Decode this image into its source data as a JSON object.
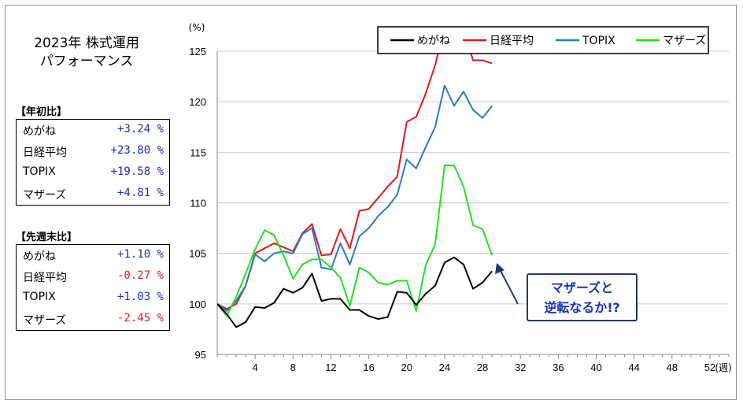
{
  "title": {
    "line1": "2023年 株式運用",
    "line2": "パフォーマンス"
  },
  "ytd": {
    "label": "【年初比】",
    "rows": [
      {
        "name": "めがね",
        "value": "+3.24 %",
        "sign": "pos"
      },
      {
        "name": "日経平均",
        "value": "+23.80 %",
        "sign": "pos"
      },
      {
        "name": "TOPIX",
        "value": "+19.58 %",
        "sign": "pos"
      },
      {
        "name": "マザーズ",
        "value": "+4.81 %",
        "sign": "pos"
      }
    ]
  },
  "wow": {
    "label": "【先週末比】",
    "rows": [
      {
        "name": "めがね",
        "value": "+1.10 %",
        "sign": "pos"
      },
      {
        "name": "日経平均",
        "value": "-0.27 %",
        "sign": "neg"
      },
      {
        "name": "TOPIX",
        "value": "+1.03 %",
        "sign": "pos"
      },
      {
        "name": "マザーズ",
        "value": "-2.45 %",
        "sign": "neg"
      }
    ]
  },
  "callout": {
    "line1": "マザーズと",
    "line2": "逆転なるか!?"
  },
  "colors": {
    "megane": "#000000",
    "nikkei": "#e01818",
    "topix": "#2a78c8",
    "mothers": "#22e022",
    "callout_text": "#1630c0",
    "callout_border": "#213a6b",
    "arrow": "#213a6b"
  },
  "chart_data": {
    "type": "line",
    "ylabel": "(%)",
    "xlabel": "(週)",
    "ylim": [
      95,
      125
    ],
    "xlim": [
      0,
      54
    ],
    "yticks": [
      95,
      100,
      105,
      110,
      115,
      120,
      125
    ],
    "xticks": [
      4,
      8,
      12,
      16,
      20,
      24,
      28,
      32,
      36,
      40,
      44,
      48,
      52
    ],
    "grid": true,
    "legend": "top-right",
    "x": [
      0,
      1,
      2,
      3,
      4,
      5,
      6,
      7,
      8,
      9,
      10,
      11,
      12,
      13,
      14,
      15,
      16,
      17,
      18,
      19,
      20,
      21,
      22,
      23,
      24,
      25,
      26,
      27,
      28,
      29
    ],
    "series": [
      {
        "name": "めがね",
        "color": "#000000",
        "values": [
          100,
          99,
          97.7,
          98.2,
          99.7,
          99.6,
          100.1,
          101.5,
          101.1,
          101.6,
          103.0,
          100.3,
          100.5,
          100.5,
          99.4,
          99.4,
          98.8,
          98.5,
          98.7,
          101.2,
          101.1,
          99.9,
          101.0,
          101.8,
          104.1,
          104.6,
          103.9,
          101.5,
          102.1,
          103.24
        ]
      },
      {
        "name": "日経平均",
        "color": "#e01818",
        "values": [
          100,
          99.5,
          100.0,
          101.8,
          105.0,
          105.5,
          106.0,
          105.6,
          105.2,
          107.0,
          107.9,
          104.8,
          104.9,
          107.4,
          105.5,
          109.2,
          109.4,
          110.5,
          111.6,
          112.6,
          118.0,
          118.5,
          120.8,
          123.6,
          127.5,
          126.6,
          127.2,
          124.1,
          124.1,
          123.8
        ]
      },
      {
        "name": "TOPIX",
        "color": "#2a78c8",
        "values": [
          100,
          99.3,
          100.3,
          101.8,
          104.9,
          104.2,
          105.0,
          105.2,
          105.0,
          106.9,
          107.5,
          103.6,
          103.4,
          106.0,
          103.9,
          106.7,
          107.5,
          108.7,
          109.6,
          110.8,
          114.3,
          113.4,
          115.5,
          117.5,
          121.6,
          119.6,
          121.0,
          119.2,
          118.4,
          119.58
        ]
      },
      {
        "name": "マザーズ",
        "color": "#22e022",
        "values": [
          100,
          98.8,
          100.7,
          103.0,
          105.4,
          107.3,
          106.8,
          104.8,
          102.5,
          103.9,
          104.4,
          104.4,
          103.6,
          102.6,
          99.8,
          103.6,
          103.1,
          102.1,
          101.9,
          102.3,
          102.3,
          99.3,
          103.8,
          105.9,
          113.7,
          113.7,
          111.6,
          107.8,
          107.4,
          104.81
        ]
      }
    ]
  }
}
